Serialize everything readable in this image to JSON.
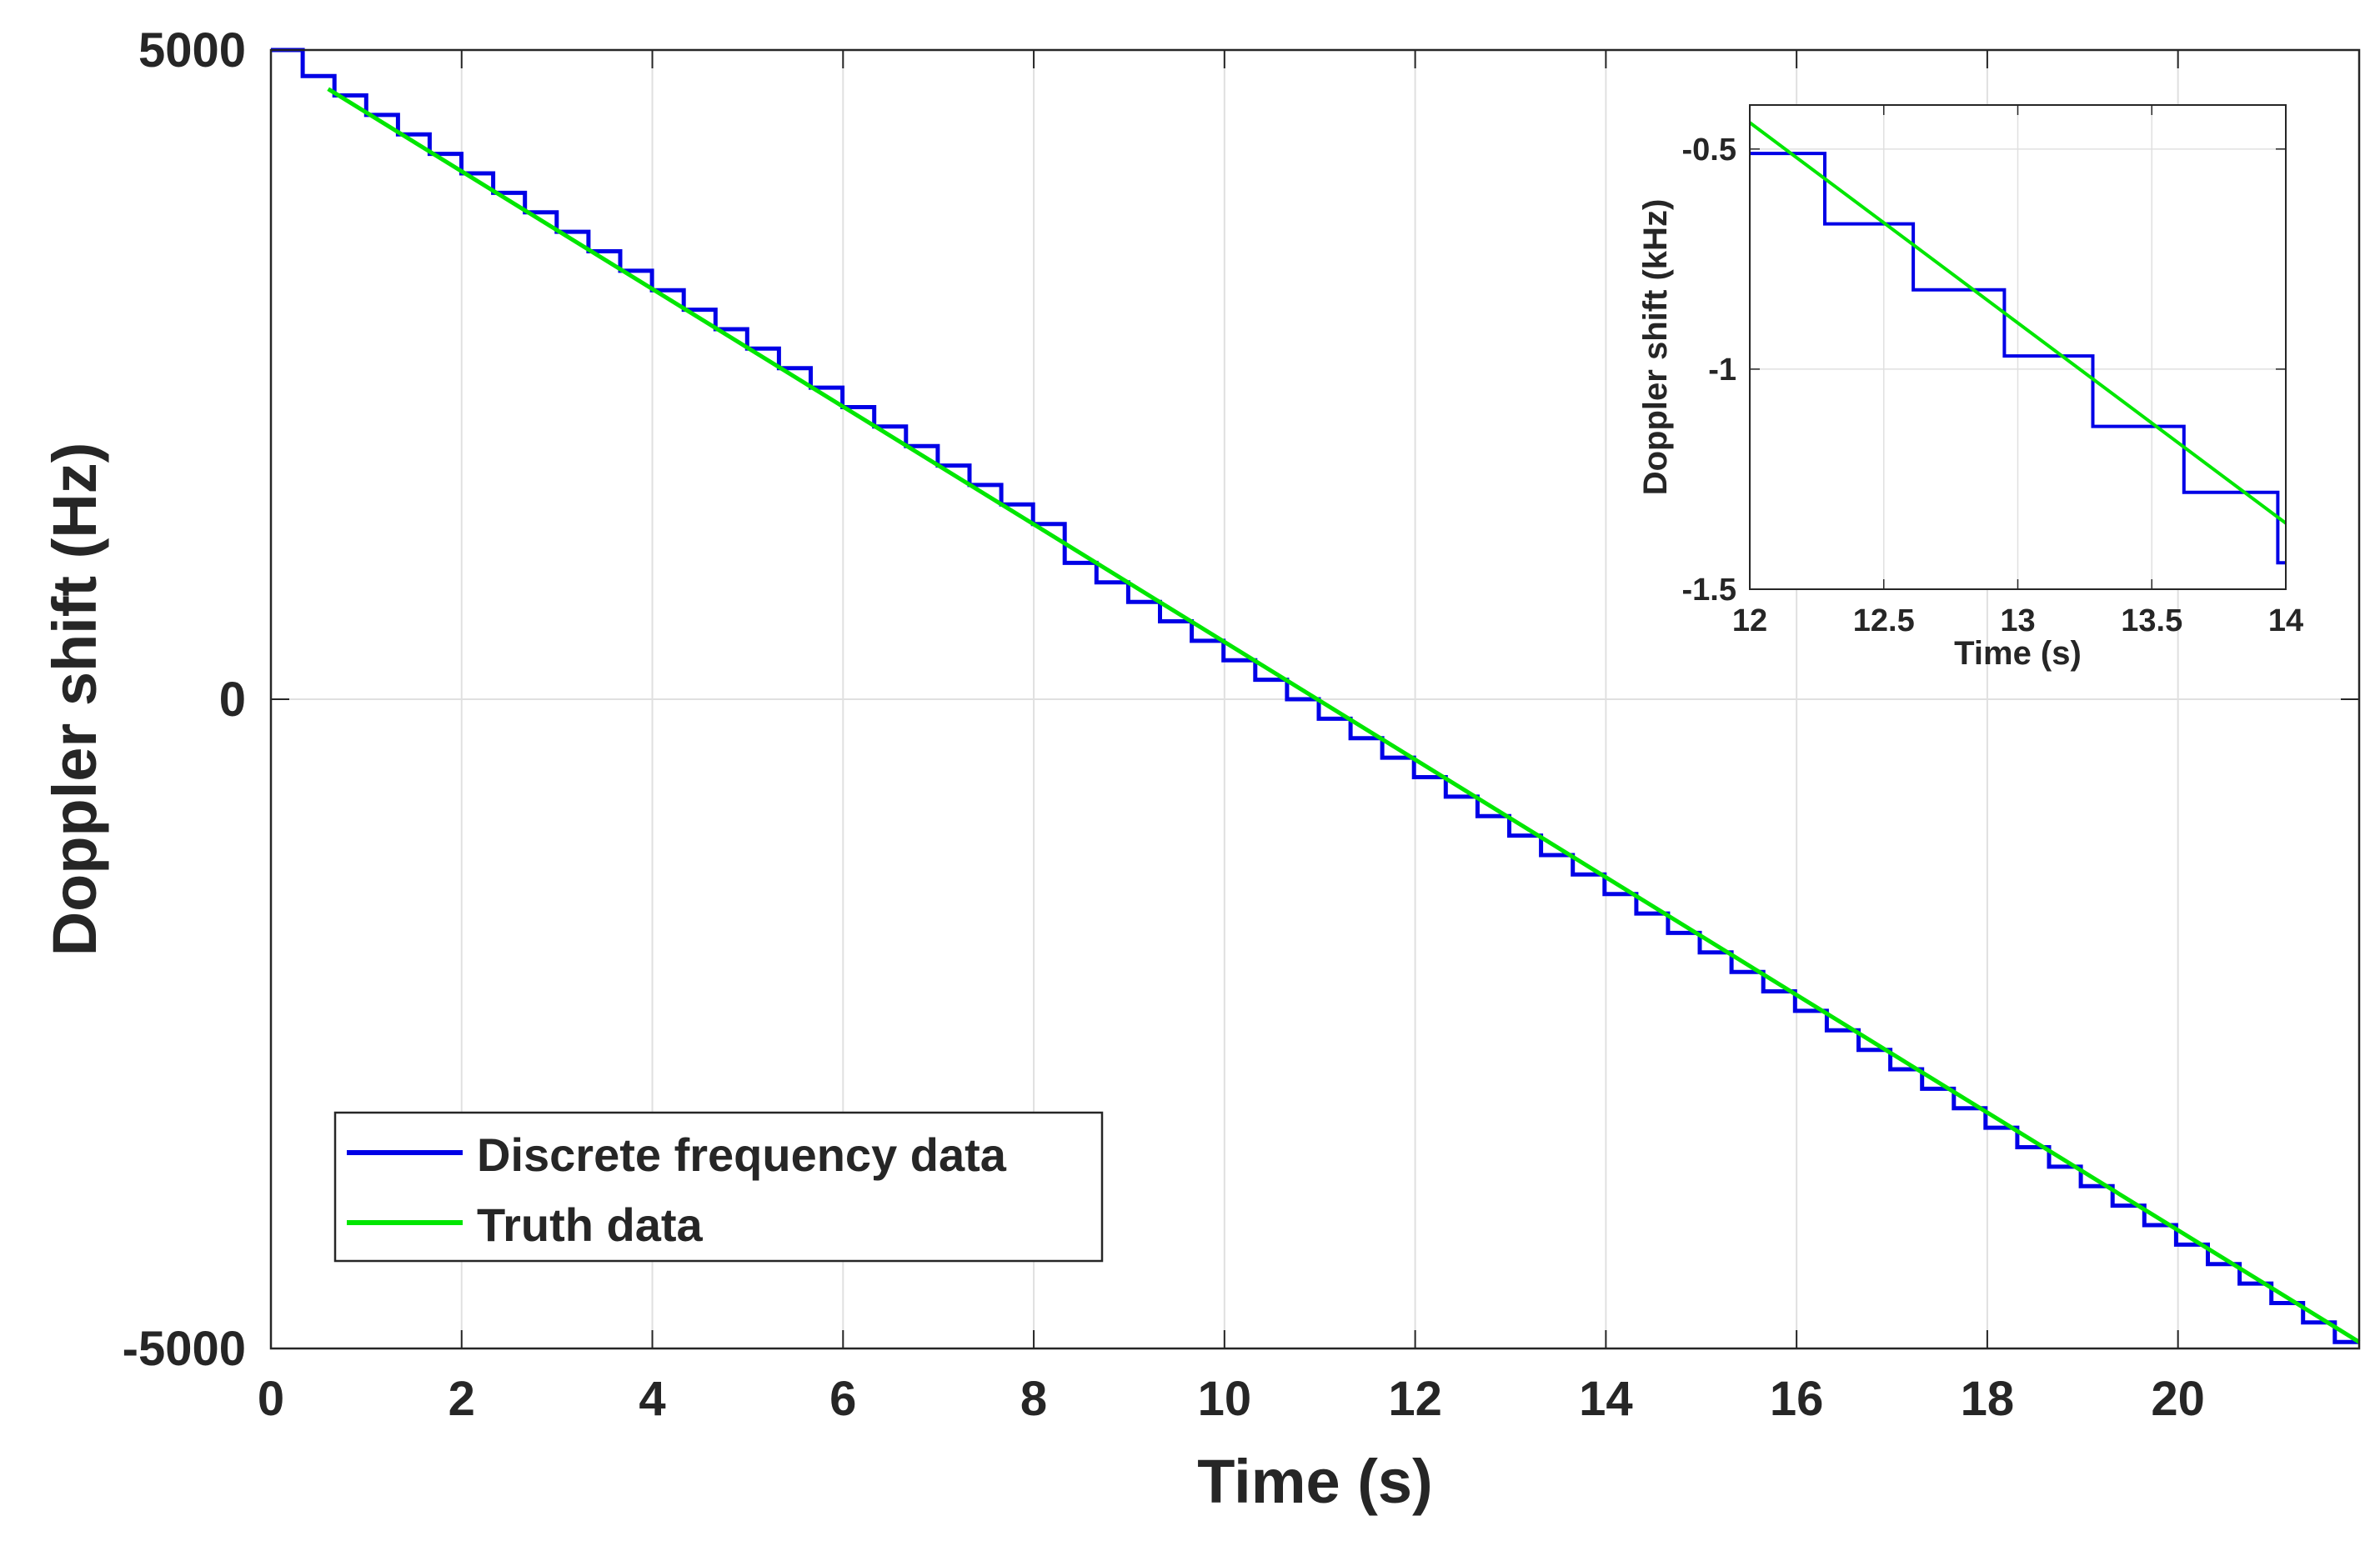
{
  "chart_data": [
    {
      "id": "main",
      "type": "line",
      "title": "",
      "xlabel": "Time (s)",
      "ylabel": "Doppler shift (Hz)",
      "xlim": [
        0,
        21.9
      ],
      "ylim": [
        -5000,
        5000
      ],
      "xticks": [
        0,
        2,
        4,
        6,
        8,
        10,
        12,
        14,
        16,
        18,
        20
      ],
      "xtick_labels": [
        "0",
        "2",
        "4",
        "6",
        "8",
        "10",
        "12",
        "14",
        "16",
        "18",
        "20"
      ],
      "yticks": [
        -5000,
        0,
        5000
      ],
      "ytick_labels": [
        "-5000",
        "0",
        "5000"
      ],
      "grid": true,
      "legend_position": "bottom-left",
      "series": [
        {
          "name": "Discrete frequency data",
          "color": "#0000e6",
          "style": "step",
          "x_start": 0,
          "x_end": 21.9,
          "step_period": 0.333,
          "first_step_value": 5000,
          "frequency_resolution_hz": 150,
          "note": "staircase sampled at ~0.33 s intervals following the truth line"
        },
        {
          "name": "Truth data",
          "color": "#00e600",
          "style": "line",
          "x": [
            0.6,
            21.9
          ],
          "y": [
            4700,
            -4950
          ]
        }
      ]
    },
    {
      "id": "inset",
      "type": "line",
      "title": "",
      "xlabel": "Time (s)",
      "ylabel": "Doppler shift (kHz)",
      "xlim": [
        12,
        14
      ],
      "ylim": [
        -1.5,
        -0.4
      ],
      "xticks": [
        12,
        12.5,
        13,
        13.5,
        14
      ],
      "xtick_labels": [
        "12",
        "12.5",
        "13",
        "13.5",
        "14"
      ],
      "yticks": [
        -1.5,
        -1,
        -0.5
      ],
      "ytick_labels": [
        "-1.5",
        "-1",
        "-0.5"
      ],
      "grid": true,
      "series": [
        {
          "name": "Discrete frequency data",
          "color": "#0000e6",
          "style": "step",
          "x": [
            12,
            12.28,
            12.28,
            12.61,
            12.61,
            12.95,
            12.95,
            13.28,
            13.28,
            13.62,
            13.62,
            13.97,
            13.97,
            14.0
          ],
          "y": [
            -0.51,
            -0.51,
            -0.67,
            -0.67,
            -0.82,
            -0.82,
            -0.97,
            -0.97,
            -1.13,
            -1.13,
            -1.28,
            -1.28,
            -1.44,
            -1.44
          ]
        },
        {
          "name": "Truth data",
          "color": "#00e600",
          "style": "line",
          "x": [
            12,
            14
          ],
          "y": [
            -0.44,
            -1.35
          ]
        }
      ]
    }
  ]
}
